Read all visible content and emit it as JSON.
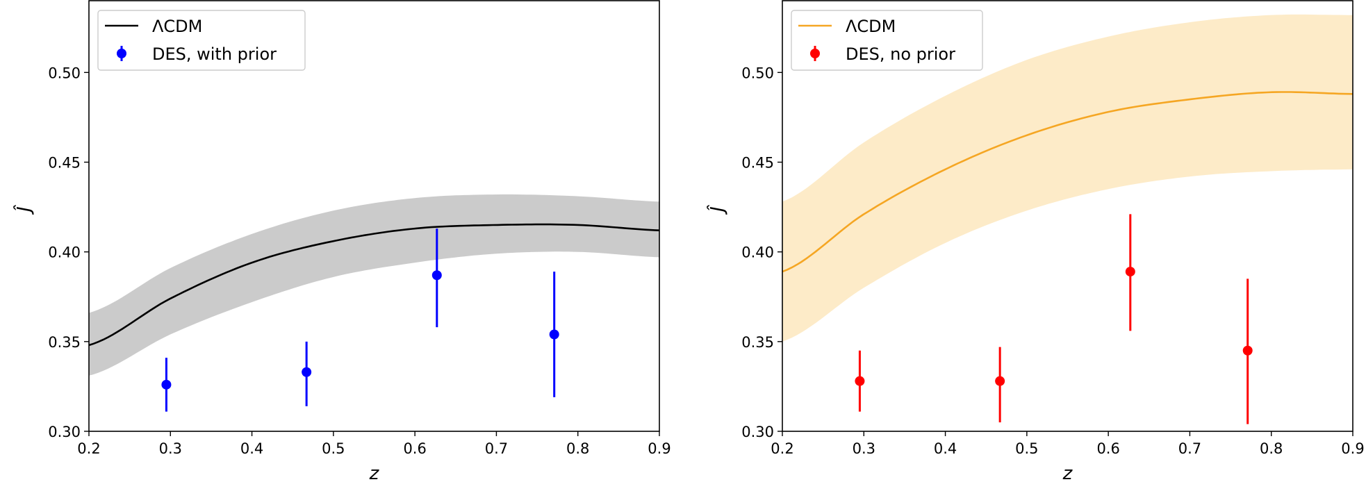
{
  "chart_data": [
    {
      "type": "line",
      "xlabel": "z",
      "ylabel": "Ĵ",
      "xlim": [
        0.2,
        0.9
      ],
      "ylim": [
        0.3,
        0.54
      ],
      "xticks": [
        "0.2",
        "0.3",
        "0.4",
        "0.5",
        "0.6",
        "0.7",
        "0.8",
        "0.9"
      ],
      "yticks": [
        "0.30",
        "0.35",
        "0.40",
        "0.45",
        "0.50"
      ],
      "grid": false,
      "legend_position": "top-left",
      "series": [
        {
          "name": "ΛCDM",
          "kind": "line-with-band",
          "color": "#000000",
          "band_color": "#cbcbcb",
          "x": [
            0.2,
            0.3,
            0.4,
            0.5,
            0.6,
            0.7,
            0.8,
            0.9
          ],
          "y": [
            0.348,
            0.374,
            0.394,
            0.406,
            0.413,
            0.415,
            0.415,
            0.412
          ],
          "lower": [
            0.331,
            0.354,
            0.372,
            0.386,
            0.394,
            0.399,
            0.4,
            0.397
          ],
          "upper": [
            0.366,
            0.391,
            0.41,
            0.423,
            0.43,
            0.432,
            0.431,
            0.428
          ]
        },
        {
          "name": "DES, with prior",
          "kind": "errorbar",
          "color": "#0000ff",
          "x": [
            0.295,
            0.467,
            0.627,
            0.771
          ],
          "y": [
            0.326,
            0.333,
            0.387,
            0.354
          ],
          "yerr_low": [
            0.015,
            0.019,
            0.029,
            0.035
          ],
          "yerr_high": [
            0.015,
            0.017,
            0.026,
            0.035
          ]
        }
      ]
    },
    {
      "type": "line",
      "xlabel": "z",
      "ylabel": "Ĵ",
      "xlim": [
        0.2,
        0.9
      ],
      "ylim": [
        0.3,
        0.54
      ],
      "xticks": [
        "0.2",
        "0.3",
        "0.4",
        "0.5",
        "0.6",
        "0.7",
        "0.8",
        "0.9"
      ],
      "yticks": [
        "0.30",
        "0.35",
        "0.40",
        "0.45",
        "0.50"
      ],
      "grid": false,
      "legend_position": "top-left",
      "series": [
        {
          "name": "ΛCDM",
          "kind": "line-with-band",
          "color": "#f5a623",
          "band_color": "#fdebc8",
          "x": [
            0.2,
            0.3,
            0.4,
            0.5,
            0.6,
            0.7,
            0.8,
            0.9
          ],
          "y": [
            0.389,
            0.421,
            0.446,
            0.465,
            0.478,
            0.485,
            0.489,
            0.488
          ],
          "lower": [
            0.35,
            0.38,
            0.405,
            0.423,
            0.435,
            0.442,
            0.445,
            0.446
          ],
          "upper": [
            0.428,
            0.461,
            0.487,
            0.507,
            0.52,
            0.528,
            0.532,
            0.532
          ]
        },
        {
          "name": "DES, no prior",
          "kind": "errorbar",
          "color": "#ff0000",
          "x": [
            0.295,
            0.467,
            0.627,
            0.771
          ],
          "y": [
            0.328,
            0.328,
            0.389,
            0.345
          ],
          "yerr_low": [
            0.017,
            0.023,
            0.033,
            0.041
          ],
          "yerr_high": [
            0.017,
            0.019,
            0.032,
            0.04
          ]
        }
      ]
    }
  ]
}
